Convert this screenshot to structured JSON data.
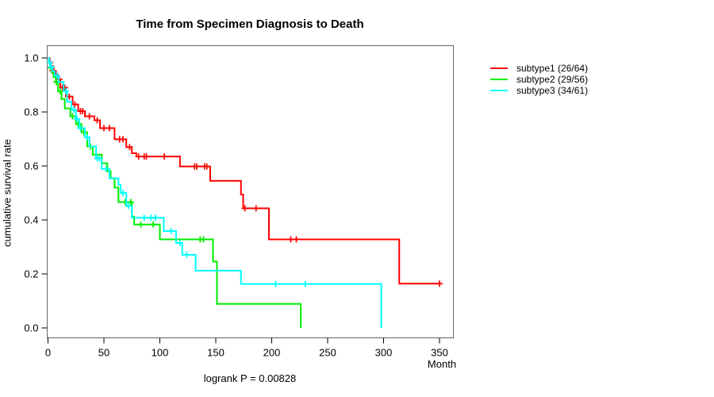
{
  "chart_data": {
    "type": "line",
    "subtype": "kaplan-meier-step-survival",
    "title": "Time from Specimen Diagnosis to Death",
    "ylabel": "cumulative survival rate",
    "xlabel": "Month",
    "footnote": "logrank P = 0.00828",
    "xlim": [
      0,
      363
    ],
    "ylim": [
      0,
      1.04
    ],
    "xticks": [
      0,
      50,
      100,
      150,
      200,
      250,
      300,
      350
    ],
    "yticks": [
      0,
      0.2,
      0.4,
      0.6,
      0.8,
      1
    ],
    "ytick_labels": [
      "0.0",
      "0.2",
      "0.4",
      "0.6",
      "0.8",
      "1.0"
    ],
    "grid": false,
    "legend_position": "right-outside",
    "box_color": "#666666",
    "tick_color": "#000000",
    "text_color": "#000000",
    "series": [
      {
        "name": "subtype1",
        "label": "subtype1 (26/64)",
        "color": "#ff0000",
        "steps": [
          [
            0,
            1.0
          ],
          [
            1.5,
            0.984
          ],
          [
            3,
            0.969
          ],
          [
            5,
            0.953
          ],
          [
            7,
            0.937
          ],
          [
            9,
            0.921
          ],
          [
            11,
            0.89
          ],
          [
            16,
            0.857
          ],
          [
            22,
            0.828
          ],
          [
            27,
            0.803
          ],
          [
            33,
            0.784
          ],
          [
            41.5,
            0.769
          ],
          [
            46.5,
            0.74
          ],
          [
            59.5,
            0.699
          ],
          [
            70,
            0.67
          ],
          [
            75,
            0.647
          ],
          [
            79,
            0.635
          ],
          [
            118,
            0.598
          ],
          [
            145,
            0.545
          ],
          [
            172.5,
            0.494
          ],
          [
            174.5,
            0.443
          ],
          [
            197.5,
            0.328
          ],
          [
            314,
            0.164
          ]
        ],
        "end": 351,
        "censors": [
          [
            2,
            0.984
          ],
          [
            4,
            0.953
          ],
          [
            10,
            0.921
          ],
          [
            13,
            0.89
          ],
          [
            15,
            0.89
          ],
          [
            19,
            0.857
          ],
          [
            24,
            0.828
          ],
          [
            29,
            0.803
          ],
          [
            31,
            0.803
          ],
          [
            37,
            0.784
          ],
          [
            44,
            0.769
          ],
          [
            50,
            0.74
          ],
          [
            55,
            0.74
          ],
          [
            64,
            0.699
          ],
          [
            67,
            0.699
          ],
          [
            73,
            0.67
          ],
          [
            81,
            0.635
          ],
          [
            86,
            0.635
          ],
          [
            88,
            0.635
          ],
          [
            104,
            0.635
          ],
          [
            131,
            0.598
          ],
          [
            133,
            0.598
          ],
          [
            140,
            0.598
          ],
          [
            142,
            0.598
          ],
          [
            176,
            0.443
          ],
          [
            186,
            0.443
          ],
          [
            217,
            0.328
          ],
          [
            222,
            0.328
          ],
          [
            350,
            0.164
          ]
        ]
      },
      {
        "name": "subtype2",
        "label": "subtype2 (29/56)",
        "color": "#00ee00",
        "steps": [
          [
            0,
            1.0
          ],
          [
            1,
            0.982
          ],
          [
            2,
            0.964
          ],
          [
            3.5,
            0.946
          ],
          [
            5,
            0.929
          ],
          [
            7,
            0.911
          ],
          [
            9,
            0.877
          ],
          [
            12,
            0.848
          ],
          [
            15,
            0.813
          ],
          [
            20,
            0.784
          ],
          [
            25,
            0.755
          ],
          [
            30,
            0.725
          ],
          [
            35,
            0.672
          ],
          [
            40,
            0.642
          ],
          [
            48,
            0.61
          ],
          [
            53,
            0.58
          ],
          [
            56,
            0.554
          ],
          [
            59.5,
            0.52
          ],
          [
            63,
            0.466
          ],
          [
            75,
            0.412
          ],
          [
            77,
            0.383
          ],
          [
            100,
            0.328
          ],
          [
            147.5,
            0.246
          ],
          [
            151,
            0.089
          ],
          [
            226,
            0.0
          ]
        ],
        "end": 226,
        "censors": [
          [
            2.5,
            0.964
          ],
          [
            7.5,
            0.911
          ],
          [
            11,
            0.877
          ],
          [
            22,
            0.784
          ],
          [
            27,
            0.755
          ],
          [
            32,
            0.725
          ],
          [
            38,
            0.672
          ],
          [
            43,
            0.642
          ],
          [
            69,
            0.466
          ],
          [
            74,
            0.466
          ],
          [
            83,
            0.383
          ],
          [
            94,
            0.383
          ],
          [
            136,
            0.328
          ],
          [
            139,
            0.328
          ]
        ]
      },
      {
        "name": "subtype3",
        "label": "subtype3 (34/61)",
        "color": "#00ffff",
        "steps": [
          [
            0,
            1.0
          ],
          [
            1,
            0.984
          ],
          [
            2.5,
            0.967
          ],
          [
            4,
            0.951
          ],
          [
            6,
            0.934
          ],
          [
            9.5,
            0.911
          ],
          [
            14,
            0.877
          ],
          [
            17,
            0.838
          ],
          [
            21,
            0.808
          ],
          [
            25,
            0.774
          ],
          [
            28,
            0.74
          ],
          [
            33,
            0.706
          ],
          [
            37,
            0.672
          ],
          [
            43,
            0.628
          ],
          [
            48,
            0.589
          ],
          [
            55,
            0.554
          ],
          [
            63,
            0.53
          ],
          [
            65,
            0.5
          ],
          [
            70,
            0.452
          ],
          [
            75,
            0.408
          ],
          [
            103.5,
            0.359
          ],
          [
            114.5,
            0.315
          ],
          [
            120,
            0.271
          ],
          [
            132,
            0.212
          ],
          [
            172.5,
            0.163
          ],
          [
            298,
            0.0
          ]
        ],
        "end": 298,
        "censors": [
          [
            1.5,
            0.984
          ],
          [
            3,
            0.967
          ],
          [
            8,
            0.934
          ],
          [
            16,
            0.877
          ],
          [
            23,
            0.808
          ],
          [
            26,
            0.774
          ],
          [
            29,
            0.74
          ],
          [
            35,
            0.706
          ],
          [
            44,
            0.628
          ],
          [
            46,
            0.628
          ],
          [
            52,
            0.589
          ],
          [
            67,
            0.5
          ],
          [
            72,
            0.452
          ],
          [
            86,
            0.408
          ],
          [
            92,
            0.408
          ],
          [
            96,
            0.408
          ],
          [
            110,
            0.359
          ],
          [
            118,
            0.315
          ],
          [
            124,
            0.271
          ],
          [
            203.5,
            0.163
          ],
          [
            230,
            0.163
          ]
        ]
      }
    ]
  }
}
